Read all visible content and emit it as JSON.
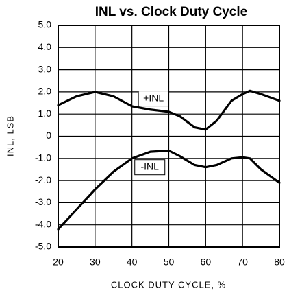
{
  "chart_data": {
    "type": "line",
    "title": "INL vs. Clock Duty Cycle",
    "xlabel": "CLOCK DUTY CYCLE, %",
    "ylabel": "INL, LSB",
    "xlim": [
      20,
      80
    ],
    "xticks": [
      20,
      30,
      40,
      50,
      60,
      70,
      80
    ],
    "ylim": [
      -5,
      5
    ],
    "yticks": [
      {
        "value": -5,
        "label": "-5.0"
      },
      {
        "value": -4,
        "label": "-4.0"
      },
      {
        "value": -3,
        "label": "-3.0"
      },
      {
        "value": -2,
        "label": "-2.0"
      },
      {
        "value": -1,
        "label": "-1.0"
      },
      0,
      {
        "value": 1,
        "label": "1.0"
      },
      {
        "value": 2,
        "label": "2.0"
      },
      {
        "value": 3,
        "label": "3.0"
      },
      {
        "value": 4,
        "label": "4.0"
      },
      {
        "value": 5,
        "label": "5.0"
      }
    ],
    "grid": true,
    "x": [
      20,
      25,
      30,
      35,
      40,
      45,
      50,
      53,
      57,
      60,
      63,
      67,
      70,
      72,
      75,
      80
    ],
    "series": [
      {
        "name": "+INL",
        "color": "#000000",
        "values": [
          1.4,
          1.8,
          2.0,
          1.8,
          1.35,
          1.2,
          1.1,
          0.9,
          0.4,
          0.3,
          0.7,
          1.6,
          1.9,
          2.05,
          1.9,
          1.6
        ]
      },
      {
        "name": "-INL",
        "color": "#000000",
        "values": [
          -4.2,
          -3.3,
          -2.4,
          -1.6,
          -1.0,
          -0.7,
          -0.65,
          -0.9,
          -1.3,
          -1.4,
          -1.3,
          -1.0,
          -0.95,
          -1.0,
          -1.5,
          -2.1
        ]
      }
    ]
  }
}
